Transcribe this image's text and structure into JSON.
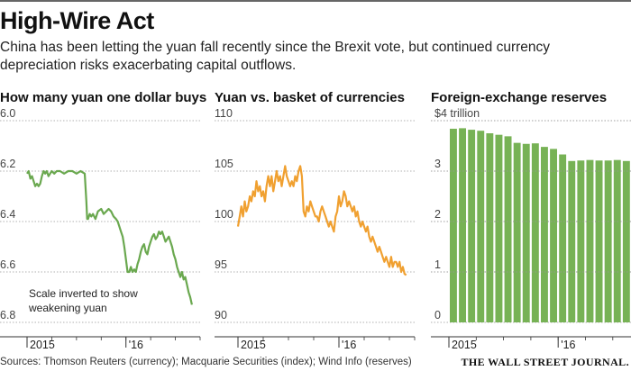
{
  "header": {
    "title": "High-Wire Act",
    "subtitle": "China has been letting the yuan fall recently since the Brexit vote, but continued currency depreciation risks exacerbating capital outflows."
  },
  "footer": {
    "source": "Sources: Thomson Reuters (currency); Macquarie Securities (index); Wind Info (reserves)",
    "credit": "THE WALL STREET JOURNAL."
  },
  "colors": {
    "green": "#6aa84f",
    "orange": "#f0a030",
    "bar_green": "#77b255",
    "grid": "#999999",
    "tick_text": "#444444"
  },
  "chart_data": [
    {
      "type": "line",
      "title": "How many yuan one dollar buys",
      "ylim": [
        6.8,
        6.0
      ],
      "inverted": true,
      "yticks": [
        "6.0",
        "6.2",
        "6.4",
        "6.6",
        "6.8"
      ],
      "ytick_values": [
        6.0,
        6.2,
        6.4,
        6.6,
        6.8
      ],
      "xlim": [
        0,
        21
      ],
      "xticks": [
        {
          "label": "2015",
          "x": 0
        },
        {
          "label": "'16",
          "x": 12
        }
      ],
      "annotation": [
        "Scale inverted to show",
        "weakening yuan"
      ],
      "color": "green",
      "series": [
        {
          "x": [
            0,
            0.2,
            0.4,
            0.6,
            0.8,
            1.0,
            1.2,
            1.4,
            1.6,
            1.8,
            2.0,
            2.2,
            2.4,
            2.6,
            2.8,
            3.0,
            3.3,
            3.6,
            4.0,
            4.5,
            5.0,
            5.5,
            6.0,
            6.5,
            7.0,
            7.2,
            7.3,
            7.4,
            7.6,
            7.8,
            8.0,
            8.3,
            8.6,
            9.0,
            9.3,
            9.6,
            9.9,
            10.2,
            10.5,
            10.8,
            11.0,
            11.2,
            11.4,
            11.6,
            11.8,
            12.0,
            12.2,
            12.4,
            12.6,
            12.8,
            13.0,
            13.2,
            13.4,
            13.6,
            13.8,
            14.0,
            14.2,
            14.4,
            14.6,
            14.8,
            15.0,
            15.2,
            15.4,
            15.6,
            15.8,
            16.0,
            16.2,
            16.4,
            16.6,
            16.8,
            17.0,
            17.2,
            17.4,
            17.6,
            17.8,
            18.0,
            18.2,
            18.4,
            18.6,
            18.8,
            19.0,
            19.2,
            19.4,
            19.6,
            19.8,
            20.0
          ],
          "y": [
            6.21,
            6.2,
            6.23,
            6.22,
            6.24,
            6.26,
            6.25,
            6.26,
            6.25,
            6.22,
            6.2,
            6.21,
            6.2,
            6.22,
            6.21,
            6.2,
            6.21,
            6.2,
            6.2,
            6.21,
            6.2,
            6.2,
            6.21,
            6.2,
            6.21,
            6.32,
            6.39,
            6.39,
            6.37,
            6.38,
            6.37,
            6.39,
            6.36,
            6.35,
            6.37,
            6.36,
            6.35,
            6.36,
            6.38,
            6.39,
            6.4,
            6.42,
            6.44,
            6.46,
            6.5,
            6.55,
            6.6,
            6.6,
            6.58,
            6.6,
            6.59,
            6.6,
            6.57,
            6.55,
            6.52,
            6.5,
            6.49,
            6.52,
            6.53,
            6.5,
            6.48,
            6.46,
            6.45,
            6.47,
            6.46,
            6.44,
            6.45,
            6.44,
            6.46,
            6.48,
            6.47,
            6.46,
            6.48,
            6.5,
            6.53,
            6.55,
            6.58,
            6.6,
            6.62,
            6.6,
            6.63,
            6.62,
            6.65,
            6.68,
            6.7,
            6.73
          ]
        }
      ]
    },
    {
      "type": "line",
      "title": "Yuan vs. basket of currencies",
      "ylim": [
        90,
        110
      ],
      "yticks": [
        "110",
        "105",
        "100",
        "95",
        "90"
      ],
      "ytick_values": [
        110,
        105,
        100,
        95,
        90
      ],
      "xlim": [
        0,
        21
      ],
      "xticks": [
        {
          "label": "2015",
          "x": 0
        },
        {
          "label": "'16",
          "x": 12
        }
      ],
      "color": "orange",
      "series": [
        {
          "x": [
            0,
            0.2,
            0.4,
            0.6,
            0.8,
            1.0,
            1.2,
            1.4,
            1.6,
            1.8,
            2.0,
            2.2,
            2.4,
            2.6,
            2.8,
            3.0,
            3.2,
            3.4,
            3.6,
            3.8,
            4.0,
            4.2,
            4.4,
            4.6,
            4.8,
            5.0,
            5.2,
            5.4,
            5.6,
            5.8,
            6.0,
            6.2,
            6.4,
            6.6,
            6.8,
            7.0,
            7.2,
            7.4,
            7.6,
            7.8,
            8.0,
            8.2,
            8.4,
            8.6,
            8.8,
            9.0,
            9.2,
            9.4,
            9.6,
            9.8,
            10.0,
            10.2,
            10.4,
            10.6,
            10.8,
            11.0,
            11.2,
            11.4,
            11.6,
            11.8,
            12.0,
            12.2,
            12.4,
            12.6,
            12.8,
            13.0,
            13.2,
            13.4,
            13.6,
            13.8,
            14.0,
            14.2,
            14.4,
            14.6,
            14.8,
            15.0,
            15.2,
            15.4,
            15.6,
            15.8,
            16.0,
            16.2,
            16.4,
            16.6,
            16.8,
            17.0,
            17.2,
            17.4,
            17.6,
            17.8,
            18.0,
            18.2,
            18.4,
            18.6,
            18.8,
            19.0,
            19.2,
            19.4,
            19.6,
            19.8,
            20.0
          ],
          "y": [
            99.5,
            100.5,
            101.5,
            100.5,
            102.0,
            101.0,
            101.5,
            102.5,
            102.0,
            103.0,
            102.5,
            104.0,
            103.0,
            103.5,
            102.5,
            103.0,
            102.0,
            103.5,
            104.5,
            103.5,
            104.5,
            103.0,
            104.0,
            105.0,
            104.0,
            104.5,
            103.5,
            104.5,
            105.5,
            104.5,
            104.0,
            103.5,
            104.0,
            103.5,
            104.5,
            104.0,
            105.0,
            105.5,
            104.5,
            101.0,
            100.5,
            101.5,
            101.0,
            102.0,
            101.5,
            101.0,
            100.5,
            100.5,
            100.0,
            101.0,
            101.5,
            101.0,
            100.5,
            100.0,
            99.5,
            100.0,
            99.5,
            99.0,
            100.5,
            101.0,
            102.5,
            101.5,
            102.0,
            103.0,
            102.5,
            101.5,
            102.0,
            101.5,
            101.0,
            101.5,
            100.5,
            101.0,
            100.0,
            99.5,
            100.0,
            99.5,
            99.0,
            99.5,
            98.5,
            98.0,
            98.5,
            98.0,
            97.5,
            97.0,
            97.5,
            97.0,
            96.5,
            96.0,
            96.5,
            96.0,
            95.5,
            96.5,
            95.5,
            96.0,
            96.0,
            95.5,
            96.0,
            95.0,
            95.5,
            94.8,
            94.7
          ]
        }
      ]
    },
    {
      "type": "bar",
      "title": "Foreign-exchange reserves",
      "ylim": [
        0,
        4
      ],
      "yticks": [
        "$4 trillion",
        "3",
        "2",
        "1",
        "0"
      ],
      "ytick_values": [
        4,
        3,
        2,
        1,
        0
      ],
      "xticks": [
        {
          "label": "2015",
          "index": 0
        },
        {
          "label": "'16",
          "index": 12
        }
      ],
      "color": "bar_green",
      "values": [
        3.84,
        3.85,
        3.82,
        3.8,
        3.75,
        3.72,
        3.69,
        3.56,
        3.54,
        3.55,
        3.48,
        3.44,
        3.33,
        3.2,
        3.21,
        3.22,
        3.21,
        3.21,
        3.22,
        3.2
      ]
    }
  ]
}
